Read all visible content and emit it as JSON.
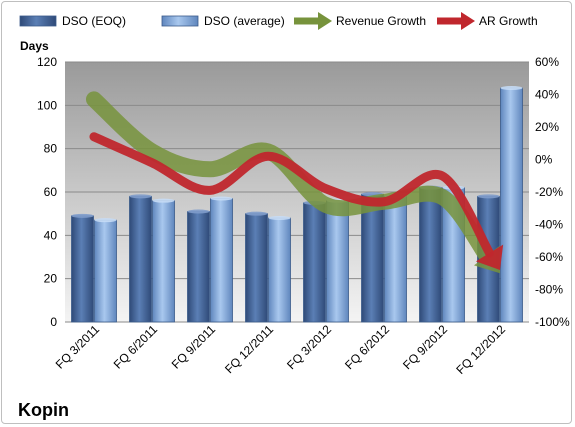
{
  "chart_data": {
    "type": "bar",
    "title": "Kopin",
    "categories": [
      "FQ 3/2011",
      "FQ 6/2011",
      "FQ 9/2011",
      "FQ 12/2011",
      "FQ 3/2012",
      "FQ 6/2012",
      "FQ 9/2012",
      "FQ 12/2012"
    ],
    "ylabel": "Days",
    "ylim": [
      0,
      120
    ],
    "yticks": [
      0,
      20,
      40,
      60,
      80,
      100,
      120
    ],
    "y2lim": [
      -100,
      60
    ],
    "y2ticks": [
      "-100%",
      "-80%",
      "-60%",
      "-40%",
      "-20%",
      "0%",
      "20%",
      "40%",
      "60%"
    ],
    "grid": true,
    "legend_position": "top",
    "series": [
      {
        "name": "DSO (EOQ)",
        "kind": "bar",
        "axis": "left",
        "color": "#4f6fa0",
        "values": [
          49,
          58,
          51,
          50,
          55,
          59,
          62,
          58
        ]
      },
      {
        "name": "DSO (average)",
        "kind": "bar",
        "axis": "left",
        "color": "#8fb4e3",
        "values": [
          47,
          56,
          57,
          48,
          56,
          58,
          62,
          108
        ]
      },
      {
        "name": "Revenue Growth",
        "kind": "line",
        "axis": "right",
        "color": "#77933c",
        "values": [
          37,
          5,
          -6,
          5,
          -28,
          -26,
          -23,
          -70
        ]
      },
      {
        "name": "AR Growth",
        "kind": "line",
        "axis": "right",
        "color": "#c0272d",
        "values": [
          14,
          -2,
          -19,
          2,
          -18,
          -26,
          -10,
          -68
        ]
      }
    ]
  }
}
